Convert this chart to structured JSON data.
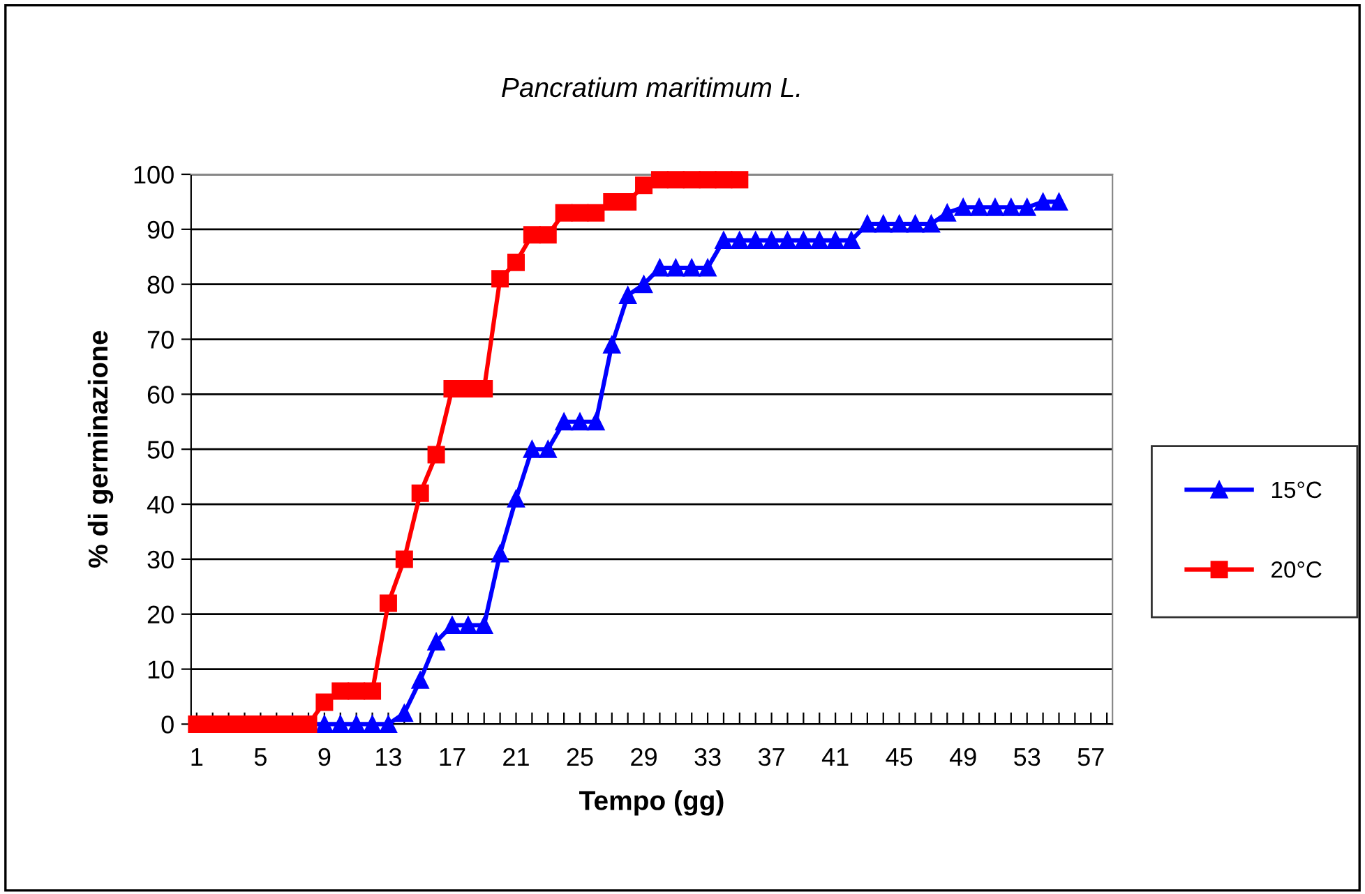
{
  "chart_data": {
    "type": "line",
    "title": "Pancratium maritimum L.",
    "xlabel": "Tempo (gg)",
    "ylabel": "% di germinazione",
    "categories": [
      "1",
      null,
      null,
      null,
      "5",
      null,
      null,
      null,
      "9",
      null,
      null,
      null,
      "13",
      null,
      null,
      null,
      "17",
      null,
      null,
      null,
      "21",
      null,
      null,
      null,
      "25",
      null,
      null,
      null,
      "29",
      null,
      null,
      null,
      "33",
      null,
      null,
      null,
      "37",
      null,
      null,
      null,
      "41",
      null,
      null,
      null,
      "45",
      null,
      null,
      null,
      "49",
      null,
      null,
      null,
      "53",
      null,
      null,
      null,
      "57",
      null
    ],
    "series": [
      {
        "name": "15°C",
        "color": "#0000ff",
        "marker": "triangle",
        "values": [
          null,
          null,
          null,
          null,
          null,
          null,
          0,
          0,
          0,
          0,
          0,
          0,
          0,
          2,
          8,
          15,
          18,
          18,
          18,
          31,
          41,
          50,
          50,
          55,
          55,
          55,
          69,
          78,
          80,
          83,
          83,
          83,
          83,
          88,
          88,
          88,
          88,
          88,
          88,
          88,
          88,
          88,
          91,
          91,
          91,
          91,
          91,
          93,
          94,
          94,
          94,
          94,
          94,
          95,
          95,
          null,
          null,
          null
        ]
      },
      {
        "name": "20°C",
        "color": "#ff0000",
        "marker": "square",
        "values": [
          0,
          0,
          0,
          0,
          0,
          0,
          0,
          0,
          4,
          6,
          6,
          6,
          22,
          30,
          42,
          49,
          61,
          61,
          61,
          81,
          84,
          89,
          89,
          93,
          93,
          93,
          95,
          95,
          98,
          99,
          99,
          99,
          99,
          99,
          99,
          null,
          null,
          null,
          null,
          null,
          null,
          null,
          null,
          null,
          null,
          null,
          null,
          null,
          null,
          null,
          null,
          null,
          null,
          null,
          null,
          null,
          null,
          null
        ]
      }
    ],
    "ylim": [
      0,
      100
    ],
    "yticks": [
      0,
      10,
      20,
      30,
      40,
      50,
      60,
      70,
      80,
      90,
      100
    ],
    "grid": "y",
    "legend": "right",
    "line_style": "solid"
  }
}
